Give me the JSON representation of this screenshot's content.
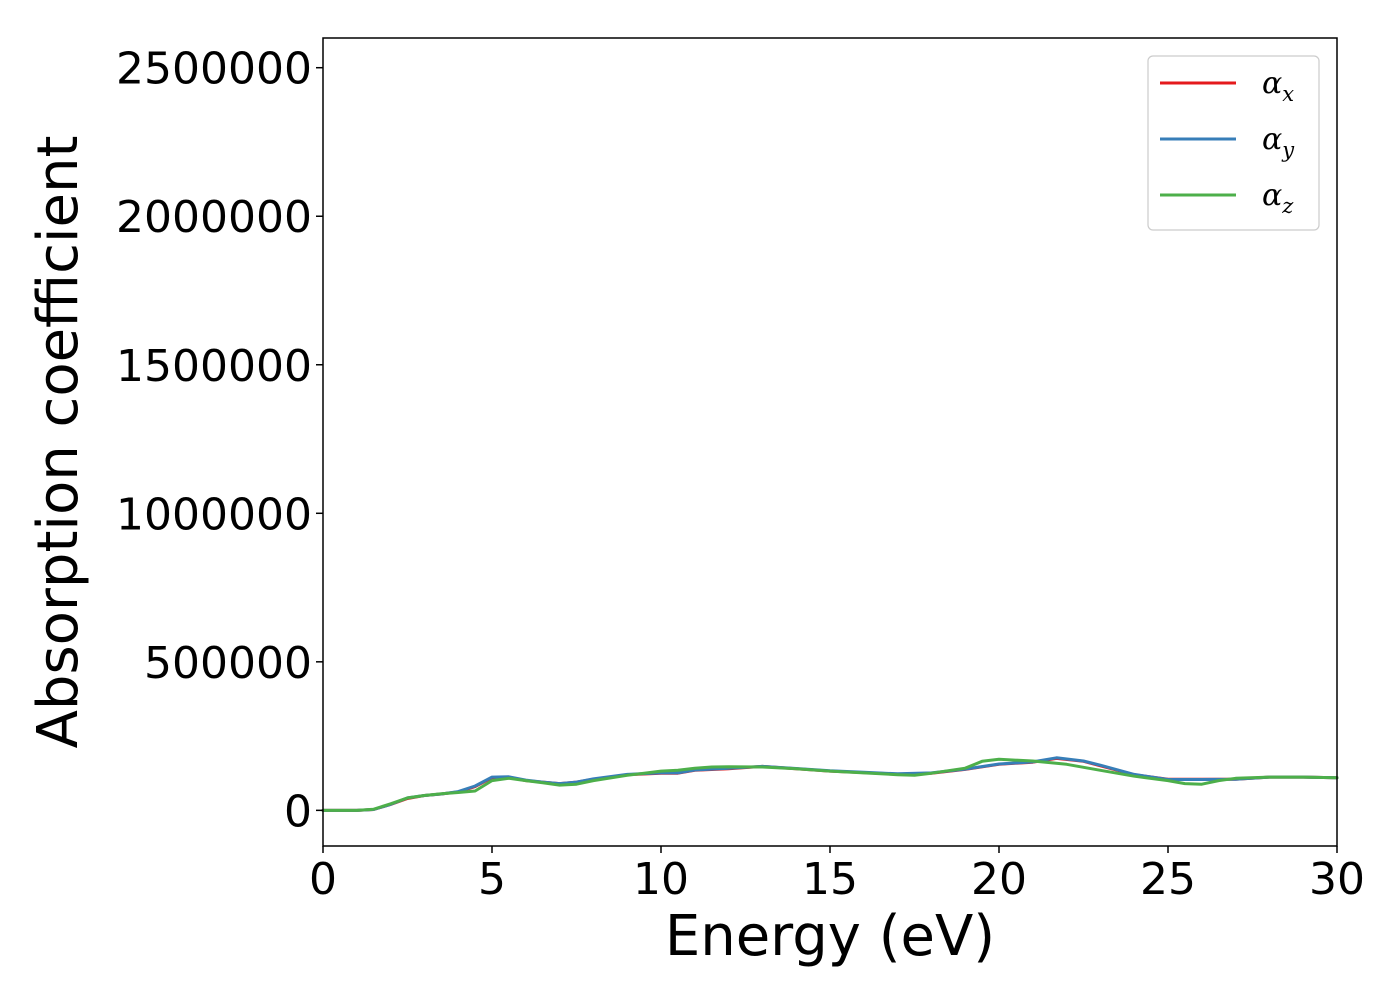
{
  "chart_data": {
    "type": "line",
    "xlabel": "Energy (eV)",
    "ylabel": "Absorption coefficient",
    "xlim": [
      0,
      30
    ],
    "ylim": [
      -120000,
      2600000
    ],
    "x_ticks": [
      0,
      5,
      10,
      15,
      20,
      25,
      30
    ],
    "x_tick_labels": [
      "0",
      "5",
      "10",
      "15",
      "20",
      "25",
      "30"
    ],
    "y_ticks": [
      0,
      500000,
      1000000,
      1500000,
      2000000,
      2500000
    ],
    "y_tick_labels": [
      "0",
      "500000",
      "1000000",
      "1500000",
      "2000000",
      "2500000"
    ],
    "grid": false,
    "legend_position": "top-right",
    "series": [
      {
        "name": "α_x",
        "label_main": "α",
        "label_sub": "x",
        "color": "#e41a1c",
        "x": [
          0,
          1,
          1.5,
          2,
          2.5,
          3,
          3.5,
          4,
          4.5,
          5,
          5.5,
          6,
          6.5,
          7,
          7.5,
          8,
          9,
          10,
          10.5,
          11,
          12,
          13,
          14,
          15,
          16,
          17,
          18,
          19,
          20,
          21,
          21.7,
          22.5,
          23,
          24,
          25,
          26,
          27,
          28,
          29,
          30
        ],
        "values": [
          0,
          0,
          3000,
          20000,
          40000,
          50000,
          55000,
          62000,
          80000,
          110000,
          112000,
          100000,
          95000,
          90000,
          95000,
          105000,
          120000,
          125000,
          125000,
          135000,
          140000,
          148000,
          140000,
          132000,
          127000,
          122000,
          125000,
          138000,
          155000,
          162000,
          175000,
          165000,
          150000,
          120000,
          105000,
          105000,
          105000,
          112000,
          112000,
          110000
        ]
      },
      {
        "name": "α_y",
        "label_main": "α",
        "label_sub": "y",
        "color": "#377eb8",
        "x": [
          0,
          1,
          1.5,
          2,
          2.5,
          3,
          3.5,
          4,
          4.5,
          5,
          5.5,
          6,
          6.5,
          7,
          7.5,
          8,
          9,
          10,
          10.5,
          11,
          12,
          13,
          14,
          15,
          16,
          17,
          18,
          19,
          20,
          21,
          21.7,
          22.5,
          23,
          24,
          25,
          26,
          27,
          28,
          29,
          30
        ],
        "values": [
          0,
          0,
          3000,
          20000,
          42000,
          50000,
          55000,
          63000,
          82000,
          112000,
          113000,
          102000,
          95000,
          90000,
          95000,
          106000,
          121000,
          126000,
          126000,
          136000,
          142000,
          148000,
          141000,
          133000,
          128000,
          123000,
          126000,
          139000,
          156000,
          163000,
          177000,
          166000,
          152000,
          121000,
          104000,
          104000,
          105000,
          112000,
          112000,
          110000
        ]
      },
      {
        "name": "α_z",
        "label_main": "α",
        "label_sub": "z",
        "color": "#4daf4a",
        "x": [
          0,
          1,
          1.5,
          2,
          2.5,
          3,
          3.5,
          4,
          4.5,
          5,
          5.5,
          6,
          6.5,
          7,
          7.5,
          8,
          9,
          9.5,
          10,
          10.5,
          11,
          11.5,
          12,
          13,
          14,
          15,
          16,
          17,
          17.5,
          18,
          19,
          19.5,
          20,
          21,
          22,
          23,
          24,
          25,
          25.5,
          26,
          26.5,
          27,
          28,
          29,
          30
        ],
        "values": [
          0,
          0,
          4000,
          22000,
          42000,
          50000,
          56000,
          60000,
          65000,
          100000,
          108000,
          100000,
          93000,
          85000,
          88000,
          100000,
          118000,
          125000,
          132000,
          135000,
          142000,
          146000,
          147000,
          146000,
          140000,
          132000,
          126000,
          120000,
          118000,
          125000,
          142000,
          165000,
          172000,
          166000,
          155000,
          135000,
          115000,
          100000,
          90000,
          88000,
          100000,
          108000,
          112000,
          112000,
          110000
        ]
      }
    ]
  }
}
